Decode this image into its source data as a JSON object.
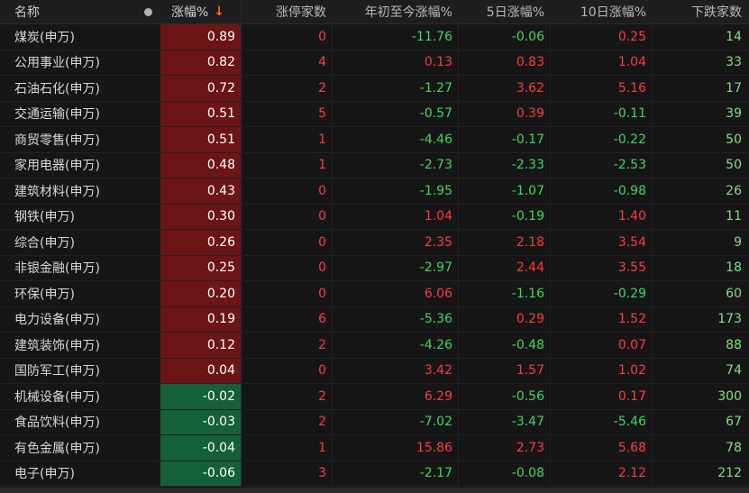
{
  "header": {
    "name": "名称",
    "pct": "涨幅%",
    "sort_icon": "↓",
    "limit_up": "涨停家数",
    "ytd": "年初至今涨幅%",
    "d5": "5日涨幅%",
    "d10": "10日涨幅%",
    "down_count": "下跌家数"
  },
  "colors": {
    "up": "#ff3b3b",
    "down": "#3fd85a",
    "up_bg": "#6b1515",
    "down_bg": "#14603a"
  },
  "rows": [
    {
      "name": "煤炭(申万)",
      "pct": "0.89",
      "limit": "0",
      "ytd": "-11.76",
      "d5": "-0.06",
      "d10": "0.25",
      "down": "14"
    },
    {
      "name": "公用事业(申万)",
      "pct": "0.82",
      "limit": "4",
      "ytd": "0.13",
      "d5": "0.83",
      "d10": "1.04",
      "down": "33"
    },
    {
      "name": "石油石化(申万)",
      "pct": "0.72",
      "limit": "2",
      "ytd": "-1.27",
      "d5": "3.62",
      "d10": "5.16",
      "down": "17"
    },
    {
      "name": "交通运输(申万)",
      "pct": "0.51",
      "limit": "5",
      "ytd": "-0.57",
      "d5": "0.39",
      "d10": "-0.11",
      "down": "39"
    },
    {
      "name": "商贸零售(申万)",
      "pct": "0.51",
      "limit": "1",
      "ytd": "-4.46",
      "d5": "-0.17",
      "d10": "-0.22",
      "down": "50"
    },
    {
      "name": "家用电器(申万)",
      "pct": "0.48",
      "limit": "1",
      "ytd": "-2.73",
      "d5": "-2.33",
      "d10": "-2.53",
      "down": "50"
    },
    {
      "name": "建筑材料(申万)",
      "pct": "0.43",
      "limit": "0",
      "ytd": "-1.95",
      "d5": "-1.07",
      "d10": "-0.98",
      "down": "26"
    },
    {
      "name": "钢铁(申万)",
      "pct": "0.30",
      "limit": "0",
      "ytd": "1.04",
      "d5": "-0.19",
      "d10": "1.40",
      "down": "11"
    },
    {
      "name": "综合(申万)",
      "pct": "0.26",
      "limit": "0",
      "ytd": "2.35",
      "d5": "2.18",
      "d10": "3.54",
      "down": "9"
    },
    {
      "name": "非银金融(申万)",
      "pct": "0.25",
      "limit": "0",
      "ytd": "-2.97",
      "d5": "2.44",
      "d10": "3.55",
      "down": "18"
    },
    {
      "name": "环保(申万)",
      "pct": "0.20",
      "limit": "0",
      "ytd": "6.06",
      "d5": "-1.16",
      "d10": "-0.29",
      "down": "60"
    },
    {
      "name": "电力设备(申万)",
      "pct": "0.19",
      "limit": "6",
      "ytd": "-5.36",
      "d5": "0.29",
      "d10": "1.52",
      "down": "173"
    },
    {
      "name": "建筑装饰(申万)",
      "pct": "0.12",
      "limit": "2",
      "ytd": "-4.26",
      "d5": "-0.48",
      "d10": "0.07",
      "down": "88"
    },
    {
      "name": "国防军工(申万)",
      "pct": "0.04",
      "limit": "0",
      "ytd": "3.42",
      "d5": "1.57",
      "d10": "1.02",
      "down": "74"
    },
    {
      "name": "机械设备(申万)",
      "pct": "-0.02",
      "limit": "2",
      "ytd": "6.29",
      "d5": "-0.56",
      "d10": "0.17",
      "down": "300"
    },
    {
      "name": "食品饮料(申万)",
      "pct": "-0.03",
      "limit": "2",
      "ytd": "-7.02",
      "d5": "-3.47",
      "d10": "-5.46",
      "down": "67"
    },
    {
      "name": "有色金属(申万)",
      "pct": "-0.04",
      "limit": "1",
      "ytd": "15.86",
      "d5": "2.73",
      "d10": "5.68",
      "down": "78"
    },
    {
      "name": "电子(申万)",
      "pct": "-0.06",
      "limit": "3",
      "ytd": "-2.17",
      "d5": "-0.08",
      "d10": "2.12",
      "down": "212"
    }
  ]
}
